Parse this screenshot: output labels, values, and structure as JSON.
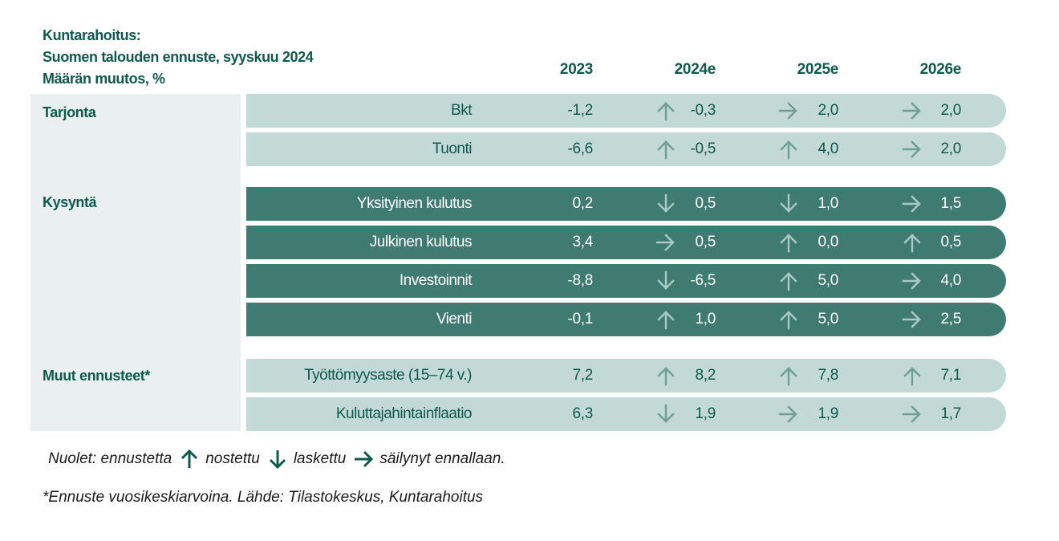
{
  "title": {
    "line1": "Kuntarahoitus:",
    "line2": "Suomen talouden ennuste, syyskuu 2024",
    "line3": "Määrän muutos, %"
  },
  "chart_data": {
    "type": "table",
    "columns": [
      "2023",
      "2024e",
      "2025e",
      "2026e"
    ],
    "groups": [
      {
        "name": "Tarjonta",
        "style": "light",
        "rows": [
          {
            "label": "Bkt",
            "values": [
              "-1,2",
              "-0,3",
              "2,0",
              "2,0"
            ],
            "arrows": [
              "up",
              "right",
              "right"
            ]
          },
          {
            "label": "Tuonti",
            "values": [
              "-6,6",
              "-0,5",
              "4,0",
              "2,0"
            ],
            "arrows": [
              "up",
              "up",
              "right"
            ]
          }
        ]
      },
      {
        "name": "Kysyntä",
        "style": "dark",
        "rows": [
          {
            "label": "Yksityinen kulutus",
            "values": [
              "0,2",
              "0,5",
              "1,0",
              "1,5"
            ],
            "arrows": [
              "down",
              "down",
              "right"
            ]
          },
          {
            "label": "Julkinen kulutus",
            "values": [
              "3,4",
              "0,5",
              "0,0",
              "0,5"
            ],
            "arrows": [
              "right",
              "up",
              "up"
            ]
          },
          {
            "label": "Investoinnit",
            "values": [
              "-8,8",
              "-6,5",
              "5,0",
              "4,0"
            ],
            "arrows": [
              "down",
              "up",
              "right"
            ]
          },
          {
            "label": "Vienti",
            "values": [
              "-0,1",
              "1,0",
              "5,0",
              "2,5"
            ],
            "arrows": [
              "up",
              "up",
              "right"
            ]
          }
        ]
      },
      {
        "name": "Muut ennusteet*",
        "style": "light",
        "rows": [
          {
            "label": "Työttömyysaste (15–74 v.)",
            "values": [
              "7,2",
              "8,2",
              "7,8",
              "7,1"
            ],
            "arrows": [
              "up",
              "up",
              "up"
            ]
          },
          {
            "label": "Kuluttajahintainflaatio",
            "values": [
              "6,3",
              "1,9",
              "1,9",
              "1,7"
            ],
            "arrows": [
              "down",
              "right",
              "right"
            ]
          }
        ]
      }
    ]
  },
  "legend": {
    "prefix": "Nuolet: ennustetta",
    "up": "nostettu",
    "down": "laskettu",
    "right": "säilynyt ennallaan."
  },
  "footnote": "*Ennuste vuosikeskiarvoina.  Lähde: Tilastokeskus, Kuntarahoitus",
  "colors": {
    "text": "#0e5a4d",
    "light_row": "#c2d9d5",
    "dark_row": "#3f7b71",
    "panel": "#e9f0ef"
  }
}
